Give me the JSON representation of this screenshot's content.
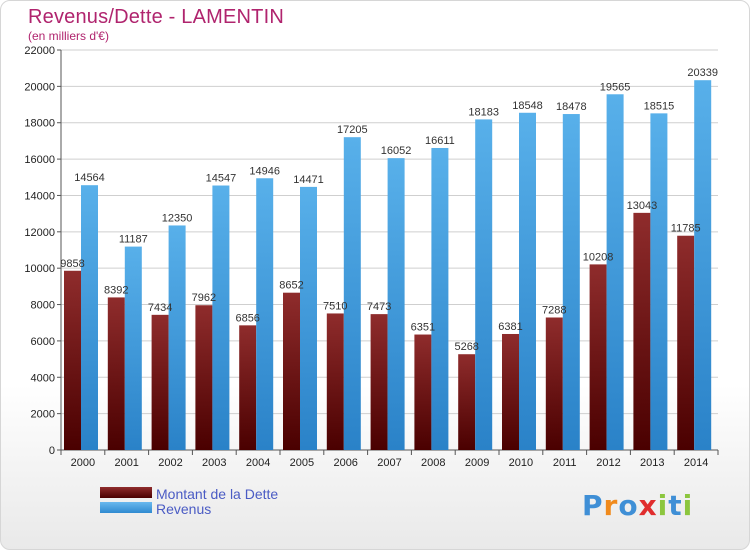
{
  "chart_data": {
    "type": "bar",
    "title": "Revenus/Dette - LAMENTIN",
    "subtitle": "(en milliers d'€)",
    "categories": [
      "2000",
      "2001",
      "2002",
      "2003",
      "2004",
      "2005",
      "2006",
      "2007",
      "2008",
      "2009",
      "2010",
      "2011",
      "2012",
      "2013",
      "2014"
    ],
    "series": [
      {
        "name": "Montant de la Dette",
        "color": "#7a1e22",
        "values": [
          9858,
          8392,
          7434,
          7962,
          6856,
          8652,
          7510,
          7473,
          6351,
          5268,
          6381,
          7288,
          10208,
          13043,
          11785
        ],
        "labels": [
          "9858",
          "8392",
          "7434",
          "7962",
          "6856",
          "8652",
          "7510",
          "7473",
          "6351",
          "5268",
          "6381",
          "7288",
          "10208",
          "13043",
          "11785"
        ]
      },
      {
        "name": "Revenus",
        "color": "#3f9ee0",
        "values": [
          14564,
          11187,
          12350,
          14547,
          14946,
          14471,
          17205,
          16052,
          16611,
          18183,
          18548,
          18478,
          19565,
          18515,
          20339
        ],
        "labels": [
          "14564",
          "11187",
          "12350",
          "14547",
          "14946",
          "14471",
          "17205",
          "16052",
          "16611",
          "18183",
          "18548",
          "18478",
          "19565",
          "18515",
          "20339"
        ]
      }
    ],
    "ylim": [
      0,
      22000
    ],
    "yticks": [
      0,
      2000,
      4000,
      6000,
      8000,
      10000,
      12000,
      14000,
      16000,
      18000,
      20000,
      22000
    ],
    "grid": true,
    "legend": "bottom-left",
    "watermark": "Proxiti"
  }
}
